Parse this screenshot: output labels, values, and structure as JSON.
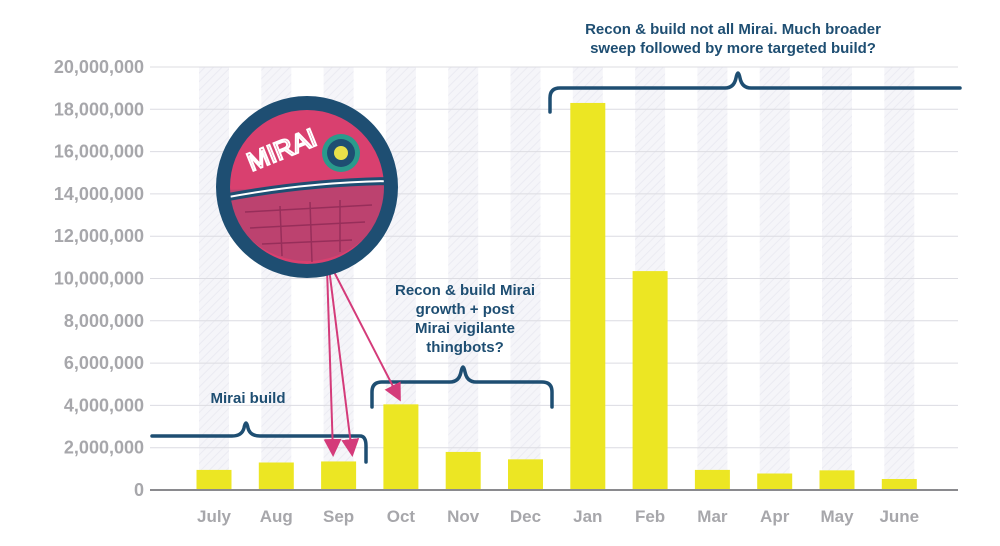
{
  "chart_data": {
    "type": "bar",
    "categories": [
      "July",
      "Aug",
      "Sep",
      "Oct",
      "Nov",
      "Dec",
      "Jan",
      "Feb",
      "Mar",
      "Apr",
      "May",
      "June"
    ],
    "values": [
      950000,
      1300000,
      1350000,
      4050000,
      1800000,
      1450000,
      18300000,
      10350000,
      950000,
      780000,
      930000,
      520000
    ],
    "ylim": [
      0,
      20000000
    ],
    "yticks": [
      0,
      2000000,
      4000000,
      6000000,
      8000000,
      10000000,
      12000000,
      14000000,
      16000000,
      18000000,
      20000000
    ],
    "ytick_labels": [
      "0",
      "2,000,000",
      "4,000,000",
      "6,000,000",
      "8,000,000",
      "10,000,000",
      "12,000,000",
      "14,000,000",
      "16,000,000",
      "18,000,000",
      "20,000,000"
    ],
    "grid": true,
    "annotations": [
      {
        "id": "mirai-build",
        "lines": [
          "Mirai build"
        ]
      },
      {
        "id": "recon-growth",
        "lines": [
          "Recon & build Mirai",
          "growth + post",
          "Mirai vigilante",
          "thingbots?"
        ]
      },
      {
        "id": "recon-broad",
        "lines": [
          "Recon & build not all Mirai. Much broader",
          "sweep followed by more targeted build?"
        ]
      }
    ],
    "illustration": {
      "label": "MIRAI",
      "icon": "death-star-icon"
    }
  },
  "colors": {
    "bar": "#ece623",
    "band": "#f3f3f8",
    "grid": "#dcdce2",
    "axis": "#8a8a8e",
    "tick_text": "#a7a7ab",
    "annotation": "#1e4e72",
    "arrow": "#d43b7a",
    "sphere_pink": "#d9406f",
    "sphere_navy": "#1e4e72"
  }
}
